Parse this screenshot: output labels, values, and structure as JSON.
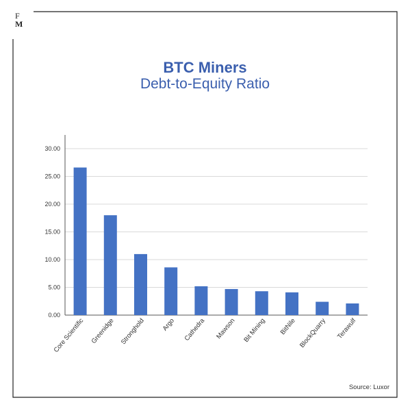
{
  "logo": {
    "line1": "F",
    "line2": "M"
  },
  "title": "BTC Miners",
  "subtitle": "Debt-to-Equity Ratio",
  "source": "Source: Luxor",
  "colors": {
    "bar": "#4472c4",
    "title": "#3b5fae",
    "grid": "#d9d9d9",
    "axis": "#555555"
  },
  "chart_data": {
    "type": "bar",
    "title": "BTC Miners",
    "subtitle": "Debt-to-Equity Ratio",
    "categories": [
      "Core Scientific",
      "Greenidge",
      "Stronghold",
      "Argo",
      "Cathedra",
      "Mawson",
      "Bit Mining",
      "BitNile",
      "BlockQuarry",
      "Terawulf"
    ],
    "values": [
      26.6,
      18.0,
      11.0,
      8.6,
      5.2,
      4.7,
      4.3,
      4.1,
      2.4,
      2.1
    ],
    "ylim": [
      0,
      30
    ],
    "yticks": [
      "0.00",
      "5.00",
      "10.00",
      "15.00",
      "20.00",
      "25.00",
      "30.00"
    ],
    "grid": true,
    "legend": "none"
  }
}
